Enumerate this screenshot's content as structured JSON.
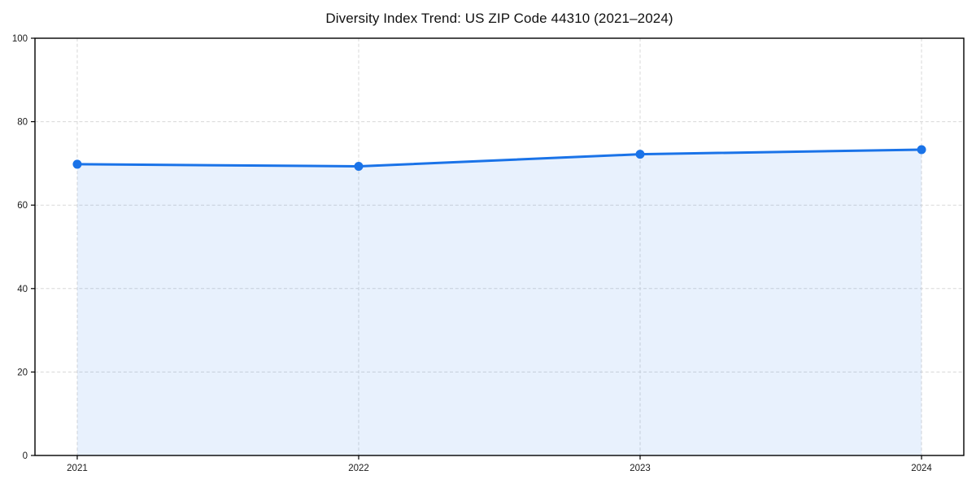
{
  "title": "Diversity Index Trend: US ZIP Code 44310 (2021–2024)",
  "chart_data": {
    "type": "area",
    "title": "Diversity Index Trend: US ZIP Code 44310 (2021–2024)",
    "categories": [
      "2021",
      "2022",
      "2023",
      "2024"
    ],
    "series": [
      {
        "name": "Diversity Index",
        "values": [
          69.8,
          69.3,
          72.2,
          73.3
        ]
      }
    ],
    "xlabel": "",
    "ylabel": "",
    "ylim": [
      0,
      100
    ],
    "yticks": [
      0,
      20,
      40,
      60,
      80,
      100
    ],
    "grid": true,
    "grid_style": "dashed",
    "legend_position": "none",
    "colors": {
      "line": "#1a73e8",
      "marker": "#1a73e8",
      "fill": "rgba(26,115,232,0.10)",
      "grid": "#d8d8d8",
      "axis": "#000000",
      "tick_label": "#1a1a1a"
    }
  }
}
